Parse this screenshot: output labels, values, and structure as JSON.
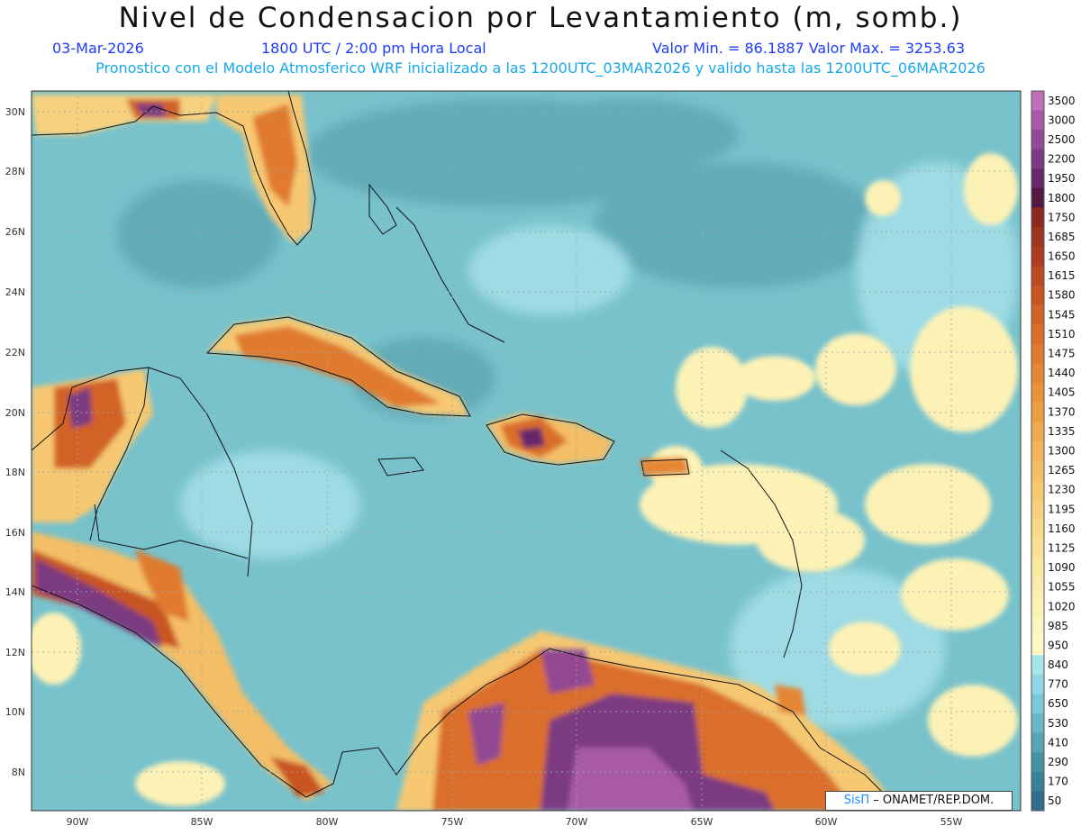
{
  "header": {
    "title": "Nivel de Condensacion por Levantamiento (m, somb.)",
    "date": "03-Mar-2026",
    "time": "1800 UTC / 2:00 pm Hora Local",
    "minmax": "Valor Min. = 86.1887  Valor Max. = 3253.63",
    "model_info": "Pronostico con el Modelo Atmosferico WRF inicializado a las 1200UTC_03MAR2026 y valido hasta las  1200UTC_06MAR2026"
  },
  "axes": {
    "lat_labels": [
      "30N",
      "28N",
      "26N",
      "24N",
      "22N",
      "20N",
      "18N",
      "16N",
      "14N",
      "12N",
      "10N",
      "8N"
    ],
    "lon_labels": [
      "90W",
      "85W",
      "80W",
      "75W",
      "70W",
      "65W",
      "60W",
      "55W"
    ]
  },
  "colorbar": {
    "levels": [
      "3500",
      "3000",
      "2500",
      "2200",
      "1950",
      "1800",
      "1750",
      "1685",
      "1650",
      "1615",
      "1580",
      "1545",
      "1510",
      "1475",
      "1440",
      "1405",
      "1370",
      "1335",
      "1300",
      "1265",
      "1230",
      "1195",
      "1160",
      "1125",
      "1090",
      "1055",
      "1020",
      "985",
      "950",
      "840",
      "770",
      "650",
      "530",
      "410",
      "290",
      "170",
      "50"
    ],
    "colors": [
      "#c070b8",
      "#a85aa5",
      "#924a92",
      "#7c3a80",
      "#66286a",
      "#521a40",
      "#8b2a22",
      "#9c3420",
      "#ac3e1f",
      "#bc4a20",
      "#c85522",
      "#d26226",
      "#da6e2a",
      "#e07a2e",
      "#e58634",
      "#e9923c",
      "#ec9e44",
      "#efa94e",
      "#f2b45a",
      "#f4be66",
      "#f6c872",
      "#f8d17e",
      "#f9d98a",
      "#fae196",
      "#fbe8a2",
      "#fcedac",
      "#fdf2b6",
      "#fdf5be",
      "#fff8c4",
      "#a8e6ee",
      "#92d8e2",
      "#7ec8d4",
      "#6ab6c4",
      "#58a4b4",
      "#4892a4",
      "#3a8096",
      "#2e6e88"
    ]
  },
  "credit": {
    "logo": "SisΠ",
    "text": "– ONAMET/REP.DOM."
  }
}
